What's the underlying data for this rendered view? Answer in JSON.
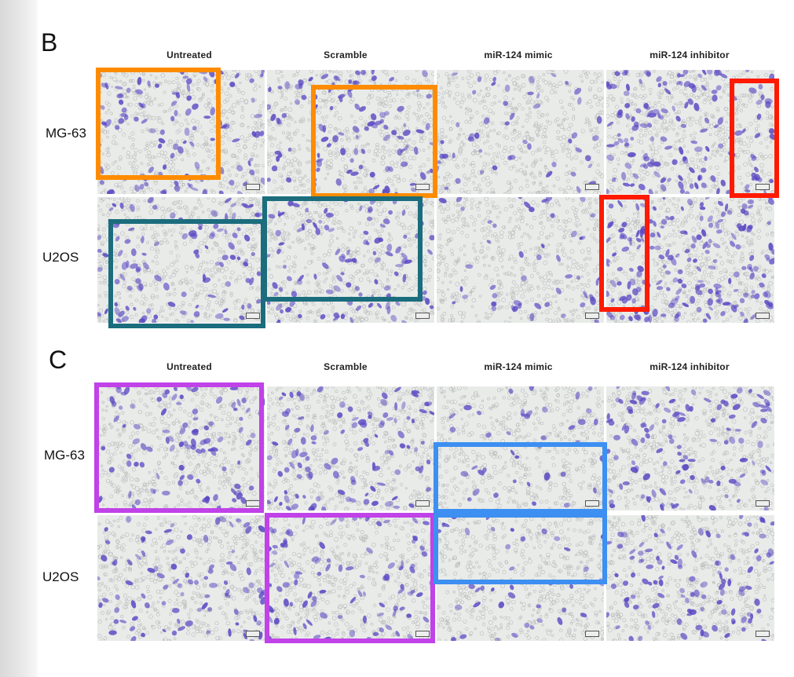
{
  "colors": {
    "orange": "#ff8c00",
    "teal": "#1b6d7d",
    "red": "#ff1a00",
    "magenta": "#c042e8",
    "blue": "#3d8ff2",
    "stain": "#5b4bc4",
    "background_light": "#dcdcdc"
  },
  "panel_b": {
    "letter": "B",
    "columns": [
      "Untreated",
      "Scramble",
      "miR-124 mimic",
      "miR-124 inhibitor"
    ],
    "rows": [
      "MG-63",
      "U2OS"
    ]
  },
  "panel_c": {
    "letter": "C",
    "columns": [
      "Untreated",
      "Scramble",
      "miR-124 mimic",
      "miR-124 inhibitor"
    ],
    "rows": [
      "MG-63",
      "U2OS"
    ]
  }
}
